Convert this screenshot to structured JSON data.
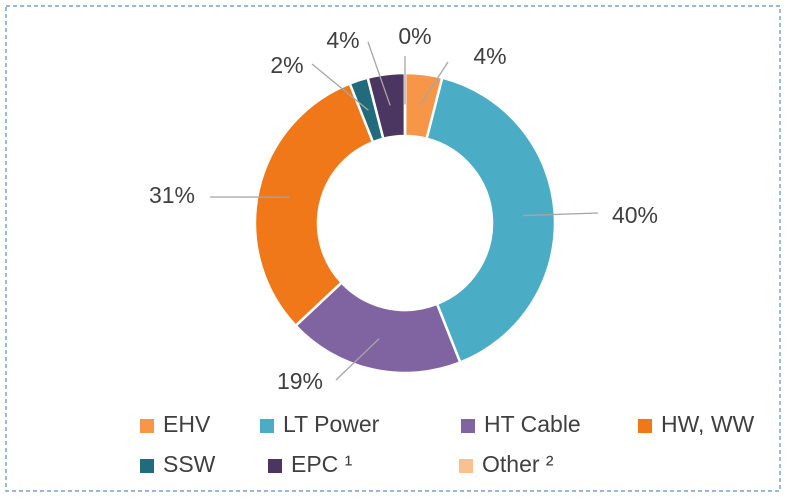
{
  "chart_data": {
    "type": "donut",
    "categories": [
      "EHV",
      "LT Power",
      "HT Cable",
      "HW, WW",
      "SSW",
      "EPC ¹",
      "Other ²"
    ],
    "values": [
      4,
      40,
      19,
      31,
      2,
      4,
      0
    ],
    "value_labels": [
      "4%",
      "40%",
      "19%",
      "31%",
      "2%",
      "4%",
      "0%"
    ],
    "colors": [
      "#f79646",
      "#4bacc6",
      "#8064a2",
      "#f07818",
      "#216b7d",
      "#4a3660",
      "#fac08f"
    ],
    "legend": "bottom"
  }
}
